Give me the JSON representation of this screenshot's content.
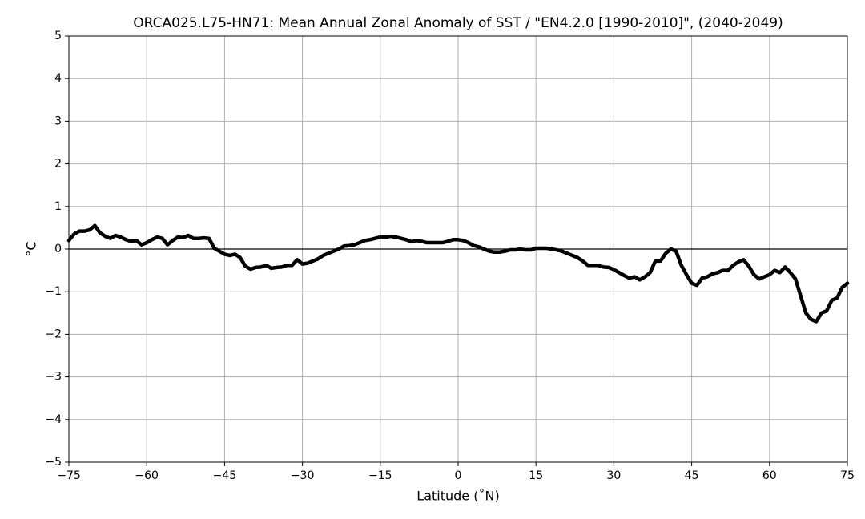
{
  "chart_data": {
    "type": "line",
    "title": "ORCA025.L75-HN71: Mean Annual Zonal Anomaly of SST / \"EN4.2.0 [1990-2010]\", (2040-2049)",
    "x_label": "Latitude (˚N)",
    "y_label": "°C",
    "xlim": [
      -75,
      75
    ],
    "ylim": [
      -5,
      5
    ],
    "xticks": [
      {
        "value": -75,
        "label": "−75"
      },
      {
        "value": -60,
        "label": "−60"
      },
      {
        "value": -45,
        "label": "−45"
      },
      {
        "value": -30,
        "label": "−30"
      },
      {
        "value": -15,
        "label": "−15"
      },
      0,
      15,
      30,
      45,
      60,
      75
    ],
    "yticks": [
      {
        "value": -5,
        "label": "−5"
      },
      {
        "value": -4,
        "label": "−4"
      },
      {
        "value": -3,
        "label": "−3"
      },
      {
        "value": -2,
        "label": "−2"
      },
      {
        "value": -1,
        "label": "−1"
      },
      0,
      1,
      2,
      3,
      4,
      5
    ],
    "grid": true,
    "x": [
      -75,
      -74,
      -73,
      -72,
      -71,
      -70,
      -69,
      -68,
      -67,
      -66,
      -65,
      -64,
      -63,
      -62,
      -61,
      -60,
      -59,
      -58,
      -57,
      -56,
      -55,
      -54,
      -53,
      -52,
      -51,
      -50,
      -49,
      -48,
      -47,
      -46,
      -45,
      -44,
      -43,
      -42,
      -41,
      -40,
      -39,
      -38,
      -37,
      -36,
      -35,
      -34,
      -33,
      -32,
      -31,
      -30,
      -29,
      -28,
      -27,
      -26,
      -25,
      -24,
      -23,
      -22,
      -21,
      -20,
      -19,
      -18,
      -17,
      -16,
      -15,
      -14,
      -13,
      -12,
      -11,
      -10,
      -9,
      -8,
      -7,
      -6,
      -5,
      -4,
      -3,
      -2,
      -1,
      0,
      1,
      2,
      3,
      4,
      5,
      6,
      7,
      8,
      9,
      10,
      11,
      12,
      13,
      14,
      15,
      16,
      17,
      18,
      19,
      20,
      21,
      22,
      23,
      24,
      25,
      26,
      27,
      28,
      29,
      30,
      31,
      32,
      33,
      34,
      35,
      36,
      37,
      38,
      39,
      40,
      41,
      42,
      43,
      44,
      45,
      46,
      47,
      48,
      49,
      50,
      51,
      52,
      53,
      54,
      55,
      56,
      57,
      58,
      59,
      60,
      61,
      62,
      63,
      64,
      65,
      66,
      67,
      68,
      69,
      70,
      71,
      72,
      73,
      74,
      75
    ],
    "series": [
      {
        "color": "#000000",
        "values": [
          0.2,
          0.35,
          0.42,
          0.42,
          0.45,
          0.55,
          0.38,
          0.3,
          0.25,
          0.32,
          0.28,
          0.22,
          0.18,
          0.2,
          0.1,
          0.15,
          0.22,
          0.28,
          0.25,
          0.1,
          0.2,
          0.28,
          0.27,
          0.32,
          0.25,
          0.25,
          0.26,
          0.25,
          0.02,
          -0.05,
          -0.12,
          -0.15,
          -0.12,
          -0.2,
          -0.4,
          -0.47,
          -0.43,
          -0.42,
          -0.38,
          -0.45,
          -0.43,
          -0.42,
          -0.38,
          -0.38,
          -0.25,
          -0.35,
          -0.33,
          -0.28,
          -0.23,
          -0.15,
          -0.1,
          -0.05,
          0.0,
          0.07,
          0.08,
          0.1,
          0.15,
          0.2,
          0.22,
          0.25,
          0.28,
          0.28,
          0.3,
          0.28,
          0.25,
          0.22,
          0.17,
          0.2,
          0.18,
          0.15,
          0.15,
          0.15,
          0.15,
          0.18,
          0.22,
          0.22,
          0.2,
          0.15,
          0.08,
          0.05,
          0.0,
          -0.05,
          -0.07,
          -0.07,
          -0.05,
          -0.02,
          -0.02,
          0.0,
          -0.02,
          -0.02,
          0.02,
          0.02,
          0.02,
          0.0,
          -0.02,
          -0.05,
          -0.1,
          -0.15,
          -0.2,
          -0.28,
          -0.38,
          -0.38,
          -0.38,
          -0.42,
          -0.43,
          -0.48,
          -0.55,
          -0.62,
          -0.68,
          -0.65,
          -0.72,
          -0.65,
          -0.55,
          -0.28,
          -0.28,
          -0.1,
          0.0,
          -0.05,
          -0.38,
          -0.6,
          -0.8,
          -0.85,
          -0.68,
          -0.65,
          -0.58,
          -0.55,
          -0.5,
          -0.5,
          -0.38,
          -0.3,
          -0.25,
          -0.4,
          -0.6,
          -0.7,
          -0.65,
          -0.6,
          -0.5,
          -0.55,
          -0.42,
          -0.55,
          -0.7,
          -1.1,
          -1.5,
          -1.65,
          -1.7,
          -1.5,
          -1.45,
          -1.2,
          -1.15,
          -0.9,
          -0.8
        ]
      }
    ]
  }
}
